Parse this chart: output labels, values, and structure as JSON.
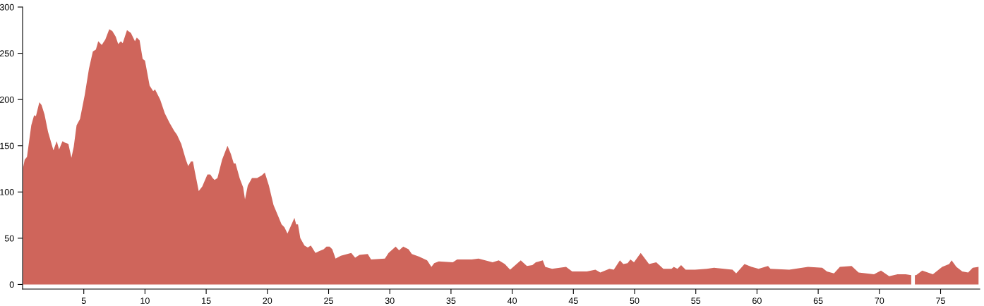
{
  "chart_data": {
    "type": "area",
    "xlim": [
      0,
      78.2
    ],
    "ylim": [
      -5,
      300
    ],
    "xticks": [
      5,
      10,
      15,
      20,
      25,
      30,
      35,
      40,
      45,
      50,
      55,
      60,
      65,
      70,
      75
    ],
    "yticks": [
      0,
      50,
      100,
      150,
      200,
      250,
      300
    ],
    "grid": false,
    "legend": false,
    "series": [
      {
        "color": "#cf655b",
        "x": [
          0.04,
          0.17,
          0.36,
          0.71,
          0.94,
          1.09,
          1.37,
          1.55,
          1.79,
          2.08,
          2.52,
          2.79,
          2.98,
          3.26,
          3.51,
          3.74,
          3.99,
          4.18,
          4.41,
          4.69,
          5.08,
          5.42,
          5.74,
          5.99,
          6.18,
          6.47,
          6.76,
          7.08,
          7.33,
          7.61,
          7.81,
          8.03,
          8.18,
          8.53,
          8.85,
          9.18,
          9.33,
          9.56,
          9.81,
          10.0,
          10.38,
          10.67,
          10.82,
          11.24,
          11.62,
          12.0,
          12.39,
          12.61,
          12.96,
          13.34,
          13.53,
          13.76,
          13.92,
          14.06,
          14.39,
          14.68,
          15.1,
          15.34,
          15.53,
          15.69,
          15.92,
          16.3,
          16.74,
          17.02,
          17.25,
          17.4,
          17.73,
          18.02,
          18.17,
          18.4,
          18.74,
          19.16,
          19.54,
          19.79,
          20.12,
          20.5,
          20.88,
          21.16,
          21.39,
          21.64,
          22.21,
          22.35,
          22.5,
          22.69,
          23.03,
          23.3,
          23.55,
          23.93,
          24.22,
          24.6,
          24.83,
          25.08,
          25.3,
          25.57,
          26.0,
          26.85,
          27.17,
          27.52,
          28.2,
          28.47,
          29.6,
          29.9,
          30.48,
          30.76,
          31.1,
          31.53,
          31.8,
          32.4,
          33.05,
          33.4,
          33.63,
          34.0,
          35.15,
          35.5,
          36.7,
          37.25,
          38.4,
          38.9,
          39.4,
          39.83,
          40.7,
          41.2,
          41.65,
          41.93,
          42.5,
          42.7,
          43.26,
          44.4,
          44.9,
          45.46,
          46.1,
          46.8,
          47.2,
          47.94,
          48.3,
          48.8,
          49.08,
          49.43,
          49.66,
          49.95,
          50.5,
          51.18,
          51.77,
          52.35,
          53.02,
          53.2,
          53.5,
          53.8,
          54.17,
          54.94,
          55.9,
          56.5,
          58.0,
          58.3,
          58.98,
          59.56,
          60.13,
          60.9,
          61.1,
          62.63,
          64.17,
          65.33,
          65.71,
          66.29,
          66.77,
          67.73,
          68.3,
          69.56,
          70.13,
          70.8,
          71.48,
          72.15,
          72.6,
          72.75,
          72.9,
          73.0,
          73.5,
          74.37,
          75.13,
          75.7,
          75.9,
          76.29,
          76.77,
          77.25,
          77.63,
          78.1
        ],
        "values": [
          126,
          135,
          138,
          172,
          183,
          182,
          197,
          194,
          184,
          165,
          145,
          155,
          146,
          155,
          153,
          152,
          137,
          149,
          172,
          179,
          205,
          233,
          252,
          254,
          263,
          259,
          265,
          276,
          274,
          268,
          260,
          263,
          261,
          275,
          272,
          263,
          267,
          264,
          244,
          242,
          215,
          209,
          211,
          200,
          185,
          175,
          166,
          162,
          152,
          135,
          128,
          133,
          133,
          123,
          101,
          106,
          119,
          119,
          115,
          113,
          115,
          135,
          150,
          141,
          131,
          131,
          115,
          105,
          92,
          107,
          115,
          115,
          118,
          121,
          107,
          86,
          74,
          65,
          62,
          55,
          72,
          65,
          65,
          50,
          42,
          40,
          42,
          34,
          36,
          38,
          41,
          41,
          38,
          28,
          31,
          34,
          29,
          32,
          33,
          27,
          28,
          34,
          41,
          37,
          41,
          38,
          33,
          30,
          26,
          19,
          23,
          25,
          24,
          27,
          27,
          28,
          24,
          26,
          22,
          16,
          26,
          20,
          21,
          24,
          26,
          19,
          17,
          19,
          14,
          14,
          14,
          16,
          13,
          17,
          16,
          26,
          22,
          23,
          27,
          24,
          34,
          22,
          24,
          17,
          17,
          19,
          17,
          21,
          16,
          16,
          17,
          18,
          16,
          12,
          22,
          19,
          17,
          20,
          17,
          16,
          19,
          18,
          14,
          12,
          19,
          20,
          13,
          11,
          15,
          9,
          11,
          11,
          10,
          null,
          10,
          10,
          15,
          11,
          19,
          22,
          26,
          19,
          14,
          13,
          18,
          19
        ]
      }
    ]
  }
}
